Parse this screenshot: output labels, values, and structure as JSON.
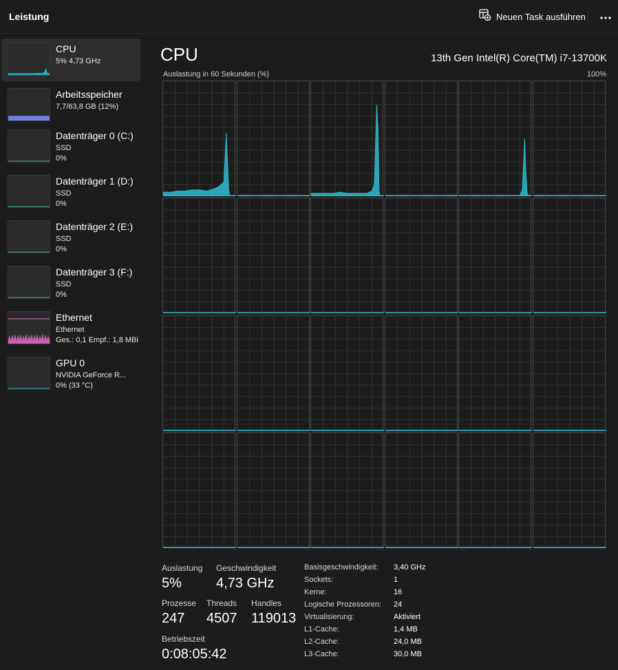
{
  "header": {
    "title": "Leistung",
    "run_task_label": "Neuen Task ausführen"
  },
  "sidebar": {
    "items": [
      {
        "title": "CPU",
        "line2": "5% 4,73 GHz",
        "line3": ""
      },
      {
        "title": "Arbeitsspeicher",
        "line2": "7,7/63,8 GB (12%)",
        "line3": ""
      },
      {
        "title": "Datenträger 0 (C:)",
        "line2": "SSD",
        "line3": "0%"
      },
      {
        "title": "Datenträger 1 (D:)",
        "line2": "SSD",
        "line3": "0%"
      },
      {
        "title": "Datenträger 2 (E:)",
        "line2": "SSD",
        "line3": "0%"
      },
      {
        "title": "Datenträger 3 (F:)",
        "line2": "SSD",
        "line3": "0%"
      },
      {
        "title": "Ethernet",
        "line2": "Ethernet",
        "line3": "Ges.: 0,1 Empf.: 1,8 MBi"
      },
      {
        "title": "GPU 0",
        "line2": "NVIDIA GeForce R...",
        "line3": "0% (33 °C)"
      }
    ]
  },
  "main": {
    "title": "CPU",
    "cpu_model": "13th Gen Intel(R) Core(TM) i7-13700K",
    "axis_label": "Auslastung in 60 Sekunden (%)",
    "axis_max": "100%"
  },
  "colors": {
    "cpu": "#2cb3c8",
    "memory": "#6f7ee0",
    "ethernet": "#e46cc7",
    "disk": "#3fae8e"
  },
  "stats": {
    "utilization_label": "Auslastung",
    "utilization": "5%",
    "speed_label": "Geschwindigkeit",
    "speed": "4,73 GHz",
    "processes_label": "Prozesse",
    "processes": "247",
    "threads_label": "Threads",
    "threads": "4507",
    "handles_label": "Handles",
    "handles": "119013",
    "uptime_label": "Betriebszeit",
    "uptime": "0:08:05:42"
  },
  "properties": [
    {
      "key": "Basisgeschwindigkeit:",
      "value": "3,40 GHz"
    },
    {
      "key": "Sockets:",
      "value": "1"
    },
    {
      "key": "Kerne:",
      "value": "16"
    },
    {
      "key": "Logische Prozessoren:",
      "value": "24"
    },
    {
      "key": "Virtualisierung:",
      "value": "Aktiviert"
    },
    {
      "key": "L1-Cache:",
      "value": "1,4 MB"
    },
    {
      "key": "L2-Cache:",
      "value": "24,0 MB"
    },
    {
      "key": "L3-Cache:",
      "value": "30,0 MB"
    }
  ],
  "chart_data": {
    "type": "area",
    "title": "CPU",
    "xlabel": "Auslastung in 60 Sekunden (%)",
    "ylim": [
      0,
      100
    ],
    "x": [
      0,
      6,
      12,
      18,
      24,
      30,
      36,
      42,
      46,
      50,
      52,
      54,
      55,
      56,
      57,
      58,
      59,
      60
    ],
    "series": [
      {
        "values": [
          3,
          3,
          4,
          4,
          5,
          5,
          4,
          6,
          8,
          12,
          55,
          4,
          0,
          0,
          0,
          0,
          0,
          0
        ]
      },
      {
        "values": [
          0,
          0,
          0,
          0,
          0,
          0,
          0,
          0,
          0,
          0,
          0,
          0,
          0,
          0,
          0,
          0,
          0,
          0
        ]
      },
      {
        "values": [
          2,
          2,
          2,
          2,
          3,
          2,
          2,
          2,
          2,
          4,
          10,
          80,
          60,
          3,
          0,
          0,
          0,
          0
        ]
      },
      {
        "values": [
          0,
          0,
          0,
          0,
          0,
          0,
          0,
          0,
          0,
          0,
          0,
          0,
          0,
          0,
          0,
          0,
          0,
          0
        ]
      },
      {
        "values": [
          0,
          0,
          0,
          0,
          0,
          0,
          0,
          0,
          0,
          0,
          5,
          50,
          20,
          3,
          0,
          0,
          0,
          0
        ]
      },
      {
        "values": [
          0,
          0,
          0,
          0,
          0,
          0,
          0,
          0,
          0,
          0,
          0,
          0,
          0,
          0,
          0,
          0,
          0,
          0
        ]
      },
      {
        "values": [
          0,
          0,
          0,
          0,
          0,
          0,
          0,
          0,
          0,
          0,
          0,
          0,
          0,
          0,
          0,
          0,
          0,
          0
        ]
      },
      {
        "values": [
          0,
          0,
          0,
          0,
          0,
          0,
          0,
          0,
          0,
          0,
          0,
          0,
          0,
          0,
          0,
          0,
          0,
          0
        ]
      },
      {
        "values": [
          0,
          0,
          0,
          0,
          0,
          0,
          0,
          0,
          0,
          0,
          0,
          0,
          0,
          0,
          0,
          0,
          0,
          0
        ]
      },
      {
        "values": [
          0,
          0,
          0,
          0,
          0,
          0,
          0,
          0,
          0,
          0,
          0,
          0,
          0,
          0,
          0,
          0,
          0,
          0
        ]
      },
      {
        "values": [
          0,
          0,
          0,
          0,
          0,
          0,
          0,
          0,
          0,
          0,
          0,
          0,
          0,
          0,
          0,
          0,
          0,
          0
        ]
      },
      {
        "values": [
          0,
          0,
          0,
          0,
          0,
          0,
          0,
          0,
          0,
          0,
          0,
          0,
          0,
          0,
          0,
          0,
          0,
          0
        ]
      },
      {
        "values": [
          0,
          0,
          0,
          0,
          0,
          0,
          0,
          0,
          0,
          0,
          0,
          0,
          0,
          0,
          0,
          0,
          0,
          0
        ]
      },
      {
        "values": [
          0,
          0,
          0,
          0,
          0,
          0,
          0,
          0,
          0,
          0,
          0,
          0,
          0,
          0,
          0,
          0,
          0,
          0
        ]
      },
      {
        "values": [
          0,
          0,
          0,
          0,
          0,
          0,
          0,
          0,
          0,
          0,
          0,
          0,
          0,
          0,
          0,
          0,
          0,
          0
        ]
      },
      {
        "values": [
          0,
          0,
          0,
          0,
          0,
          0,
          0,
          0,
          0,
          0,
          0,
          0,
          0,
          0,
          0,
          0,
          0,
          0
        ]
      },
      {
        "values": [
          0,
          0,
          0,
          0,
          0,
          0,
          0,
          0,
          0,
          0,
          0,
          0,
          0,
          0,
          0,
          0,
          0,
          0
        ]
      },
      {
        "values": [
          0,
          0,
          0,
          0,
          0,
          0,
          0,
          0,
          0,
          0,
          0,
          0,
          0,
          0,
          0,
          0,
          0,
          0
        ]
      },
      {
        "values": [
          0,
          0,
          0,
          0,
          0,
          0,
          0,
          0,
          0,
          0,
          0,
          0,
          0,
          0,
          0,
          0,
          0,
          0
        ]
      },
      {
        "values": [
          0,
          0,
          0,
          0,
          0,
          0,
          0,
          0,
          0,
          0,
          0,
          0,
          0,
          0,
          0,
          0,
          0,
          0
        ]
      },
      {
        "values": [
          0,
          0,
          0,
          0,
          0,
          0,
          0,
          0,
          0,
          0,
          0,
          0,
          0,
          0,
          0,
          0,
          0,
          0
        ]
      },
      {
        "values": [
          0,
          0,
          0,
          0,
          0,
          0,
          0,
          0,
          0,
          0,
          0,
          0,
          0,
          0,
          0,
          0,
          0,
          0
        ]
      },
      {
        "values": [
          0,
          0,
          0,
          0,
          0,
          0,
          0,
          0,
          0,
          0,
          0,
          0,
          0,
          0,
          0,
          0,
          0,
          0
        ]
      },
      {
        "values": [
          0,
          0,
          0,
          0,
          0,
          0,
          0,
          0,
          0,
          0,
          0,
          0,
          0,
          0,
          0,
          0,
          0,
          0
        ]
      }
    ]
  }
}
